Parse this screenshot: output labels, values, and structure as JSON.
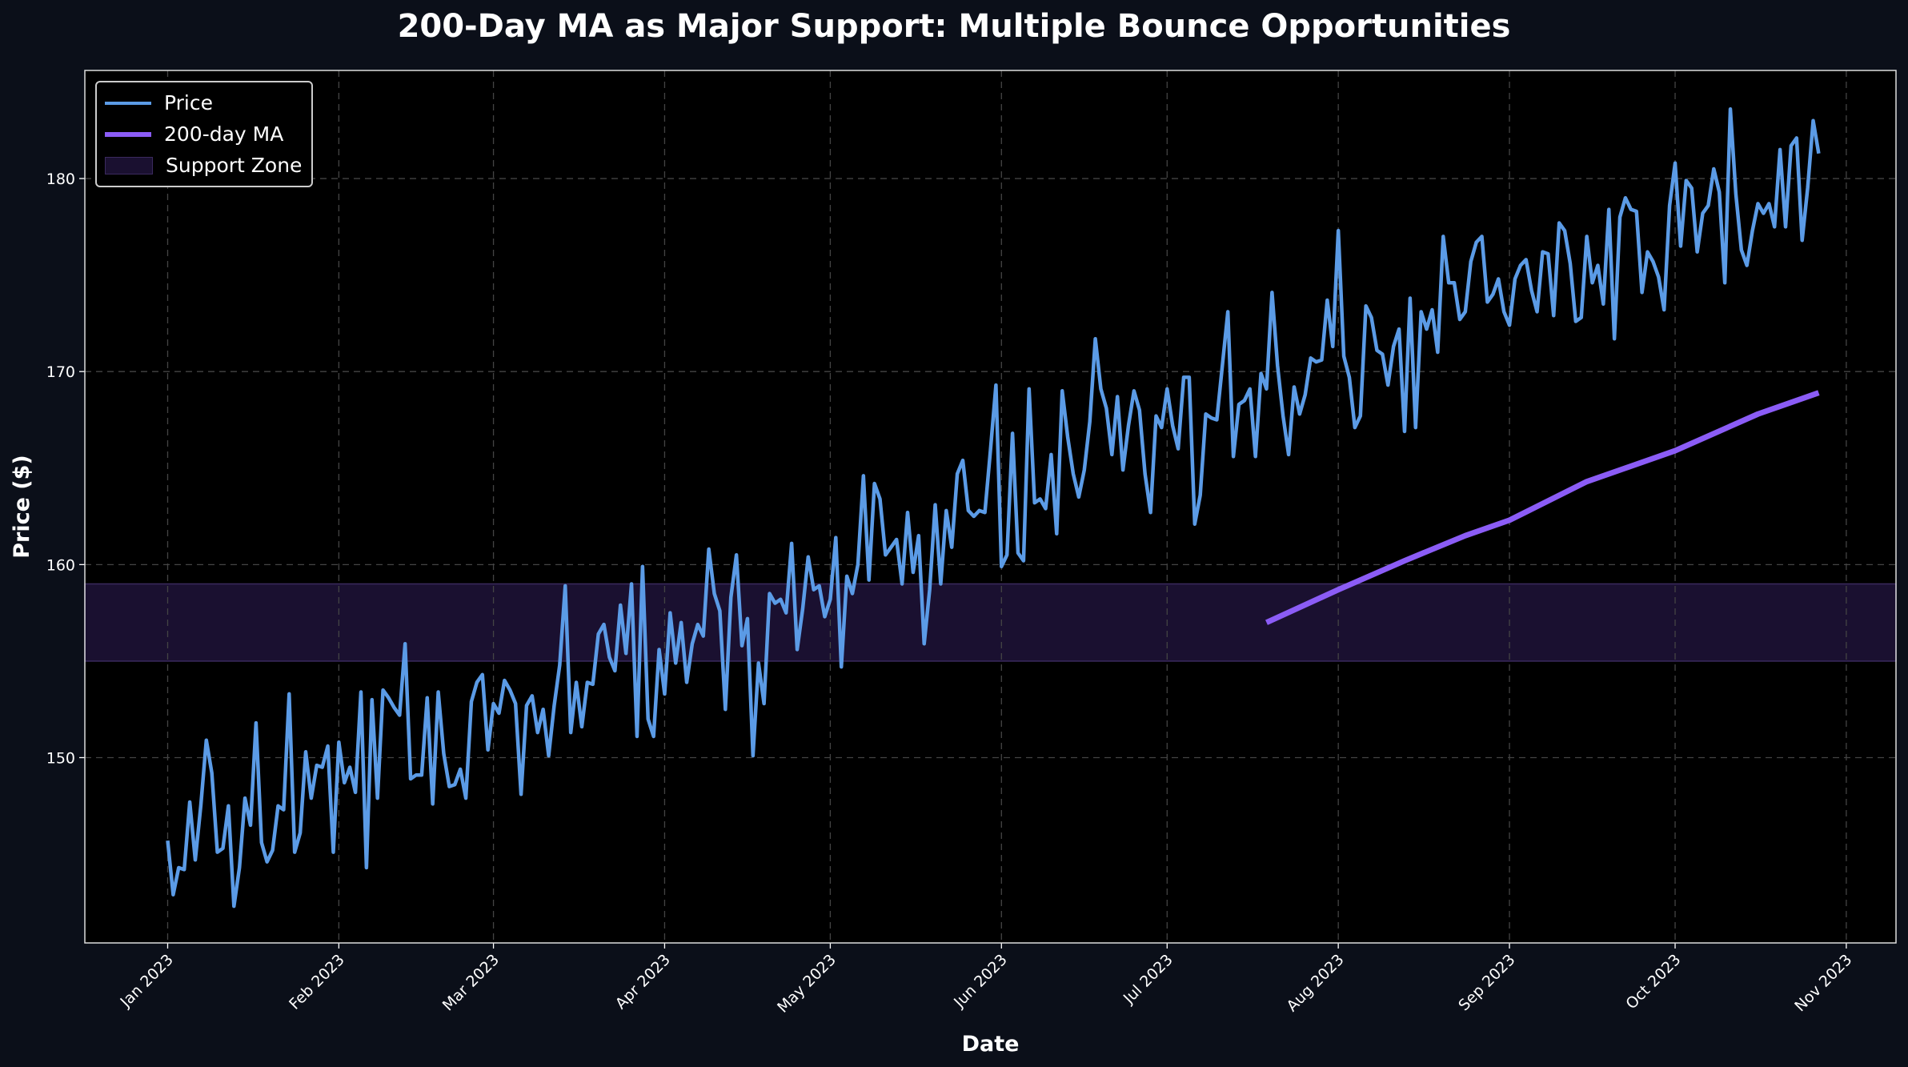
{
  "chart_data": {
    "type": "line",
    "title": "200-Day MA as Major Support: Multiple Bounce Opportunities",
    "xlabel": "Date",
    "ylabel": "Price ($)",
    "x_ticks": [
      "Jan 2023",
      "Feb 2023",
      "Mar 2023",
      "Apr 2023",
      "May 2023",
      "Jun 2023",
      "Jul 2023",
      "Aug 2023",
      "Sep 2023",
      "Oct 2023",
      "Nov 2023"
    ],
    "x_tick_dates": [
      "2023-01-01",
      "2023-02-01",
      "2023-03-01",
      "2023-04-01",
      "2023-05-01",
      "2023-06-01",
      "2023-07-01",
      "2023-08-01",
      "2023-09-01",
      "2023-10-01",
      "2023-11-01"
    ],
    "y_ticks": [
      150,
      160,
      170,
      180
    ],
    "xlim": [
      "2022-12-17",
      "2023-11-10"
    ],
    "ylim": [
      140.4,
      185.6
    ],
    "grid": true,
    "legend_placement": "top-left",
    "series": [
      {
        "name": "Price",
        "color": "#5b9be6",
        "x_start": "2023-01-01",
        "frequency": "daily",
        "values": [
          145.7,
          142.9,
          144.3,
          144.2,
          147.7,
          144.7,
          147.5,
          150.9,
          149.2,
          145.1,
          145.3,
          147.5,
          142.3,
          144.3,
          147.9,
          146.5,
          151.8,
          145.6,
          144.6,
          145.2,
          147.5,
          147.3,
          153.3,
          145.1,
          146.1,
          150.3,
          147.9,
          149.6,
          149.5,
          150.6,
          145.1,
          150.8,
          148.7,
          149.5,
          148.2,
          153.4,
          144.3,
          153.0,
          147.9,
          153.5,
          153.1,
          152.6,
          152.2,
          155.9,
          148.9,
          149.1,
          149.1,
          153.1,
          147.6,
          153.4,
          150.2,
          148.5,
          148.6,
          149.4,
          147.9,
          152.9,
          153.9,
          154.3,
          150.4,
          152.8,
          152.3,
          154.0,
          153.5,
          152.8,
          148.1,
          152.7,
          153.2,
          151.3,
          152.5,
          150.1,
          152.7,
          154.8,
          158.9,
          151.3,
          153.9,
          151.6,
          153.9,
          153.8,
          156.4,
          156.9,
          155.2,
          154.5,
          157.9,
          155.4,
          159.0,
          151.1,
          159.9,
          152.0,
          151.1,
          155.6,
          153.3,
          157.5,
          154.9,
          157.0,
          153.9,
          155.9,
          156.9,
          156.3,
          160.8,
          158.5,
          157.6,
          152.5,
          158.3,
          160.5,
          155.8,
          157.2,
          150.1,
          154.9,
          152.8,
          158.5,
          158.0,
          158.2,
          157.5,
          161.1,
          155.6,
          157.7,
          160.4,
          158.7,
          158.9,
          157.3,
          158.2,
          161.4,
          154.7,
          159.4,
          158.5,
          160.0,
          164.6,
          159.2,
          164.2,
          163.4,
          160.5,
          160.9,
          161.3,
          159.0,
          162.7,
          159.6,
          161.5,
          155.9,
          158.7,
          163.1,
          159.0,
          162.8,
          160.9,
          164.7,
          165.4,
          162.8,
          162.5,
          162.8,
          162.7,
          165.9,
          169.3,
          159.9,
          160.5,
          166.8,
          160.6,
          160.2,
          169.1,
          163.2,
          163.4,
          162.9,
          165.7,
          161.6,
          169.0,
          166.6,
          164.7,
          163.5,
          164.9,
          167.4,
          171.7,
          169.1,
          168.1,
          165.7,
          168.7,
          164.9,
          167.2,
          169.0,
          168.0,
          164.7,
          162.7,
          167.7,
          167.1,
          169.1,
          167.2,
          166.0,
          169.7,
          169.7,
          162.1,
          163.6,
          167.8,
          167.6,
          167.5,
          170.3,
          173.1,
          165.6,
          168.3,
          168.5,
          169.1,
          165.6,
          169.9,
          169.1,
          174.1,
          170.3,
          167.7,
          165.7,
          169.2,
          167.8,
          168.8,
          170.7,
          170.5,
          170.6,
          173.7,
          171.3,
          177.3,
          170.8,
          169.7,
          167.1,
          167.7,
          173.4,
          172.8,
          171.1,
          170.9,
          169.3,
          171.3,
          172.2,
          166.9,
          173.8,
          167.1,
          173.1,
          172.2,
          173.2,
          171.0,
          177.0,
          174.6,
          174.6,
          172.7,
          173.1,
          175.7,
          176.7,
          177.0,
          173.6,
          174.0,
          174.8,
          173.1,
          172.4,
          174.8,
          175.5,
          175.8,
          174.2,
          173.1,
          176.2,
          176.1,
          172.9,
          177.7,
          177.3,
          175.6,
          172.6,
          172.8,
          177.0,
          174.6,
          175.5,
          173.5,
          178.4,
          171.7,
          178.0,
          179.0,
          178.4,
          178.3,
          174.1,
          176.2,
          175.7,
          174.9,
          173.2,
          178.6,
          180.8,
          176.5,
          179.9,
          179.5,
          176.2,
          178.2,
          178.6,
          180.5,
          179.3,
          174.6,
          183.6,
          179.2,
          176.3,
          175.5,
          177.3,
          178.7,
          178.2,
          178.7,
          177.5,
          181.5,
          177.5,
          181.7,
          182.1,
          176.8,
          179.5,
          183.0,
          181.3
        ]
      },
      {
        "name": "200-day MA",
        "color": "#8b5cf6",
        "points": [
          {
            "x": "2023-07-19",
            "y": 157.0
          },
          {
            "x": "2023-08-01",
            "y": 158.7
          },
          {
            "x": "2023-08-13",
            "y": 160.2
          },
          {
            "x": "2023-08-24",
            "y": 161.5
          },
          {
            "x": "2023-09-01",
            "y": 162.3
          },
          {
            "x": "2023-09-15",
            "y": 164.3
          },
          {
            "x": "2023-10-01",
            "y": 165.9
          },
          {
            "x": "2023-10-16",
            "y": 167.8
          },
          {
            "x": "2023-10-27",
            "y": 168.9
          }
        ]
      }
    ],
    "bands": [
      {
        "name": "Support Zone",
        "y_min": 155,
        "y_max": 159,
        "color": "#1a1030",
        "edge": "#3b2a5e"
      }
    ],
    "colors": {
      "figure_bg": "#0b0f19",
      "axes_bg": "#000000",
      "grid": "#444444"
    }
  }
}
